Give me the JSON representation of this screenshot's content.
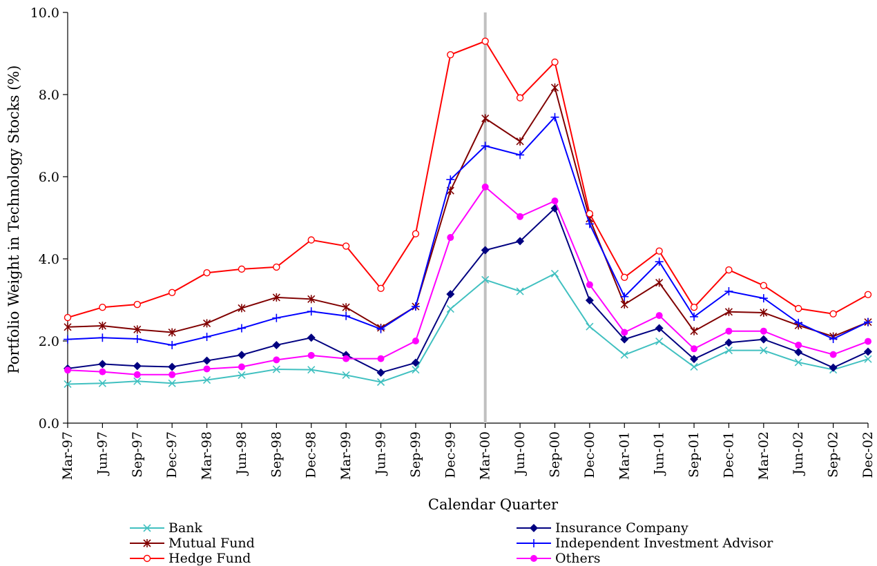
{
  "chart_data": {
    "type": "line",
    "title": "",
    "xlabel": "Calendar Quarter",
    "ylabel": "Portfolio Weight in Technology Stocks (%)",
    "ylim": [
      0,
      10
    ],
    "yticks": [
      "0.0",
      "2.0",
      "4.0",
      "6.0",
      "8.0",
      "10.0"
    ],
    "grid": false,
    "legend_position": "bottom",
    "reference_line": {
      "category": "Mar-00",
      "color": "#c0c0c0"
    },
    "categories": [
      "Mar-97",
      "Jun-97",
      "Sep-97",
      "Dec-97",
      "Mar-98",
      "Jun-98",
      "Sep-98",
      "Dec-98",
      "Mar-99",
      "Jun-99",
      "Sep-99",
      "Dec-99",
      "Mar-00",
      "Jun-00",
      "Sep-00",
      "Dec-00",
      "Mar-01",
      "Jun-01",
      "Sep-01",
      "Dec-01",
      "Mar-02",
      "Jun-02",
      "Sep-02",
      "Dec-02"
    ],
    "series": [
      {
        "name": "Bank",
        "color": "#40c0c0",
        "marker": "x",
        "values": [
          0.95,
          0.97,
          1.02,
          0.97,
          1.05,
          1.17,
          1.31,
          1.3,
          1.17,
          1.0,
          1.3,
          2.78,
          3.49,
          3.21,
          3.64,
          2.35,
          1.66,
          1.99,
          1.37,
          1.77,
          1.77,
          1.48,
          1.3,
          1.56
        ]
      },
      {
        "name": "Insurance Company",
        "color": "#000080",
        "marker": "diamond",
        "values": [
          1.33,
          1.44,
          1.39,
          1.37,
          1.52,
          1.66,
          1.9,
          2.08,
          1.66,
          1.23,
          1.47,
          3.14,
          4.21,
          4.43,
          5.23,
          2.99,
          2.04,
          2.31,
          1.56,
          1.96,
          2.04,
          1.73,
          1.35,
          1.74
        ]
      },
      {
        "name": "Mutual Fund",
        "color": "#800000",
        "marker": "star",
        "values": [
          2.34,
          2.37,
          2.28,
          2.21,
          2.43,
          2.8,
          3.06,
          3.02,
          2.82,
          2.32,
          2.84,
          5.66,
          7.42,
          6.86,
          8.17,
          4.98,
          2.89,
          3.42,
          2.24,
          2.71,
          2.69,
          2.38,
          2.11,
          2.46
        ]
      },
      {
        "name": "Independent Investment Advisor",
        "color": "#0000ff",
        "marker": "plus",
        "values": [
          2.04,
          2.08,
          2.05,
          1.9,
          2.1,
          2.31,
          2.56,
          2.72,
          2.61,
          2.29,
          2.84,
          5.93,
          6.75,
          6.53,
          7.45,
          4.85,
          3.08,
          3.93,
          2.59,
          3.21,
          3.04,
          2.44,
          2.05,
          2.46
        ]
      },
      {
        "name": "Hedge Fund",
        "color": "#ff0000",
        "marker": "circle-open",
        "values": [
          2.57,
          2.82,
          2.89,
          3.18,
          3.66,
          3.75,
          3.8,
          4.46,
          4.31,
          3.28,
          4.61,
          8.97,
          9.3,
          7.92,
          8.79,
          5.1,
          3.55,
          4.19,
          2.82,
          3.73,
          3.35,
          2.79,
          2.66,
          3.13
        ]
      },
      {
        "name": "Others",
        "color": "#ff00ff",
        "marker": "circle",
        "values": [
          1.29,
          1.25,
          1.18,
          1.18,
          1.32,
          1.37,
          1.54,
          1.65,
          1.57,
          1.57,
          2.0,
          4.52,
          5.75,
          5.03,
          5.41,
          3.37,
          2.21,
          2.62,
          1.81,
          2.24,
          2.24,
          1.9,
          1.67,
          1.99
        ]
      }
    ]
  }
}
